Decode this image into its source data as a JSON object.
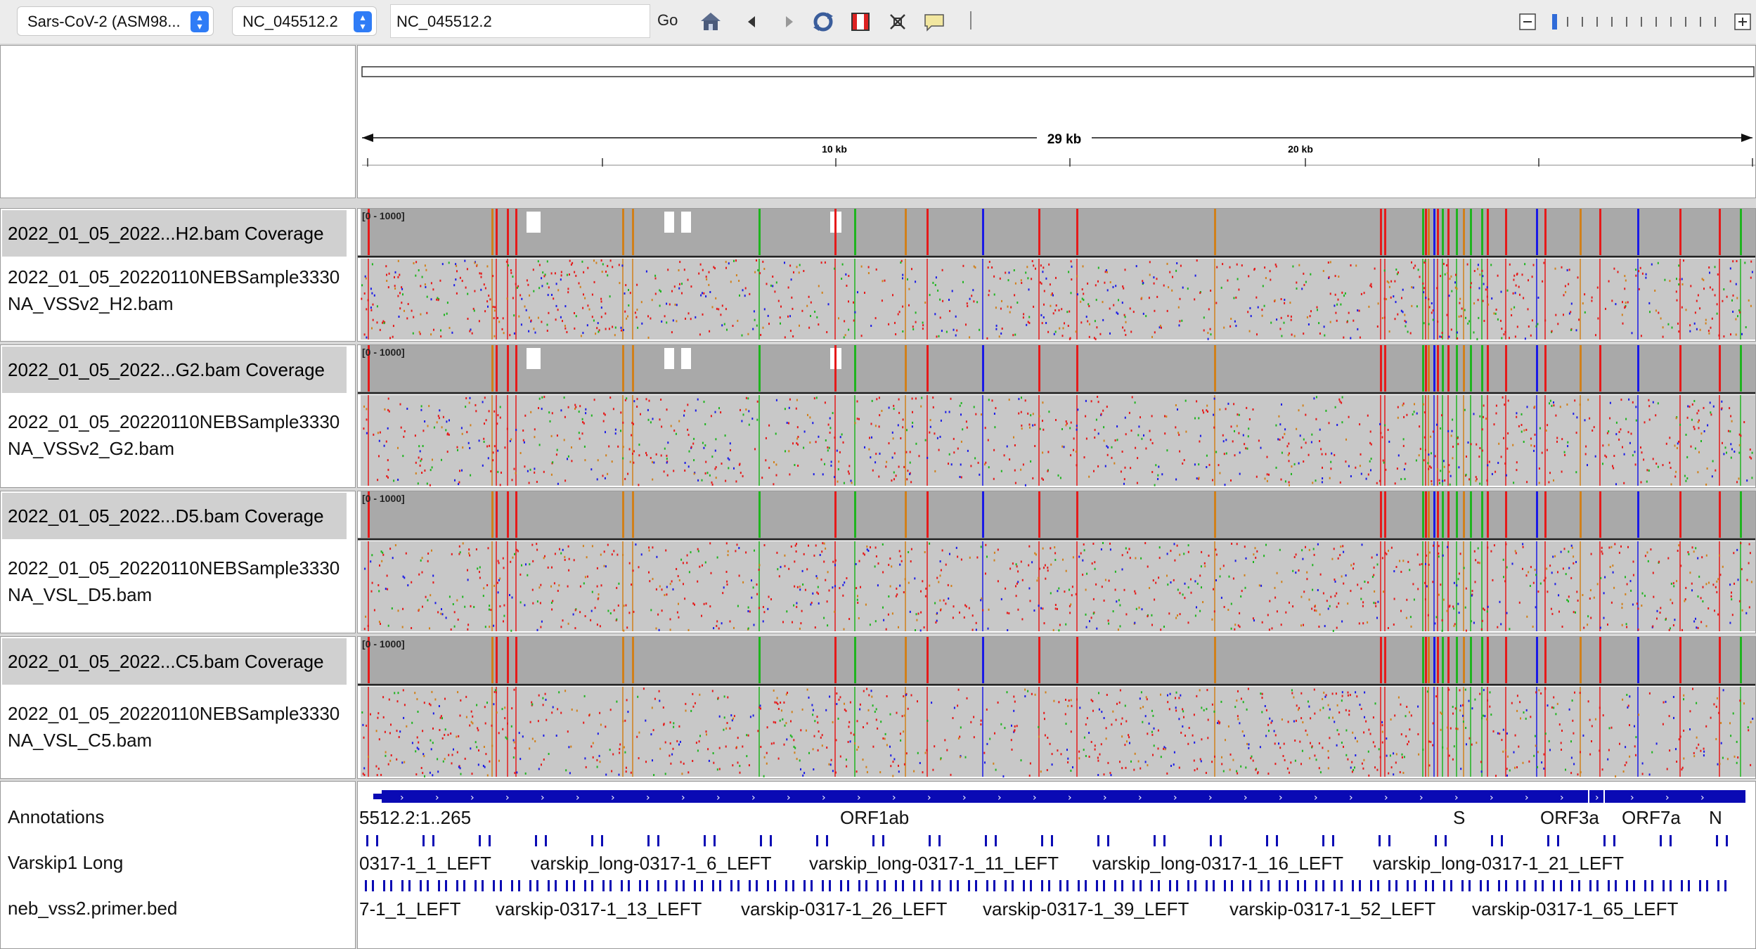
{
  "toolbar": {
    "genome": "Sars-CoV-2 (ASM98...",
    "chromosome": "NC_045512.2",
    "locus": "NC_045512.2",
    "go_label": "Go"
  },
  "ruler": {
    "span_label": "29 kb",
    "tick_labels": [
      "10 kb",
      "20 kb"
    ]
  },
  "tracks": [
    {
      "coverage_name": "2022_01_05_2022...H2.bam Coverage",
      "range": "[0 - 1000]",
      "bam_name_line1": "2022_01_05_20220110NEBSample3330",
      "bam_name_line2": "NA_VSSv2_H2.bam"
    },
    {
      "coverage_name": "2022_01_05_2022...G2.bam Coverage",
      "range": "[0 - 1000]",
      "bam_name_line1": "2022_01_05_20220110NEBSample3330",
      "bam_name_line2": "NA_VSSv2_G2.bam"
    },
    {
      "coverage_name": "2022_01_05_2022...D5.bam Coverage",
      "range": "[0 - 1000]",
      "bam_name_line1": "2022_01_05_20220110NEBSample3330",
      "bam_name_line2": "NA_VSL_D5.bam"
    },
    {
      "coverage_name": "2022_01_05_2022...C5.bam Coverage",
      "range": "[0 - 1000]",
      "bam_name_line1": "2022_01_05_20220110NEBSample3330",
      "bam_name_line2": "NA_VSL_C5.bam"
    }
  ],
  "feature_tracks": {
    "names": [
      "Annotations",
      "Varskip1 Long",
      "neb_vss2.primer.bed"
    ],
    "annotation_labels": [
      "5512.2:1..265",
      "ORF1ab",
      "S",
      "ORF3a",
      "ORF7a",
      "N"
    ],
    "varskip_long_labels": [
      "0317-1_1_LEFT",
      "varskip_long-0317-1_6_LEFT",
      "varskip_long-0317-1_11_LEFT",
      "varskip_long-0317-1_16_LEFT",
      "varskip_long-0317-1_21_LEFT"
    ],
    "primer_labels": [
      "7-1_1_LEFT",
      "varskip-0317-1_13_LEFT",
      "varskip-0317-1_26_LEFT",
      "varskip-0317-1_39_LEFT",
      "varskip-0317-1_52_LEFT",
      "varskip-0317-1_65_LEFT"
    ]
  },
  "colors": {
    "coverage_gray": "#a9a9a9",
    "read_gray": "#c8c8c8",
    "gene_blue": "#0a0ab4",
    "base_A": "#1fb41f",
    "base_C": "#1a1ae6",
    "base_G": "#d1801a",
    "base_T": "#e51a1a"
  },
  "icons": [
    "home-icon",
    "back-icon",
    "forward-icon",
    "refresh-icon",
    "roi-icon",
    "resize-icon",
    "popup-text-icon",
    "zoom-out-icon",
    "zoom-in-icon"
  ]
}
